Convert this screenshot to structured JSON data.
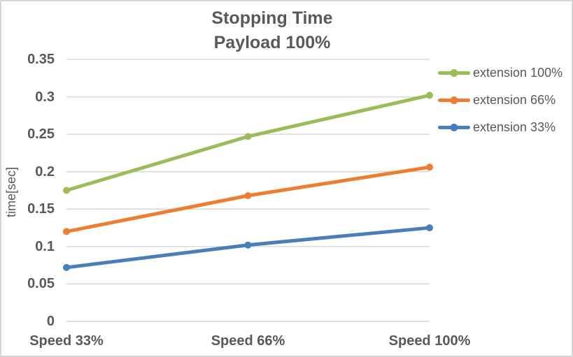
{
  "chart_data": {
    "type": "line",
    "title": "Stopping Time",
    "subtitle": "Payload 100%",
    "xlabel": "",
    "ylabel": "time[sec]",
    "categories": [
      "Speed 33%",
      "Speed 66%",
      "Speed 100%"
    ],
    "series": [
      {
        "name": "extension 100%",
        "color": "#9CBB59",
        "values": [
          0.175,
          0.247,
          0.302
        ]
      },
      {
        "name": "extension 66%",
        "color": "#ED7D31",
        "values": [
          0.12,
          0.168,
          0.206
        ]
      },
      {
        "name": "extension 33%",
        "color": "#4A7EBB",
        "values": [
          0.072,
          0.102,
          0.125
        ]
      }
    ],
    "ylim": [
      0,
      0.35
    ],
    "yticks": [
      "0",
      "0.05",
      "0.1",
      "0.15",
      "0.2",
      "0.25",
      "0.3",
      "0.35"
    ],
    "grid": true,
    "legend_position": "right",
    "marker": "circle"
  },
  "colors": {
    "text": "#595959",
    "gridline": "#D9D9D9",
    "border": "#D6D6D6",
    "background": "#FFFFFF"
  }
}
